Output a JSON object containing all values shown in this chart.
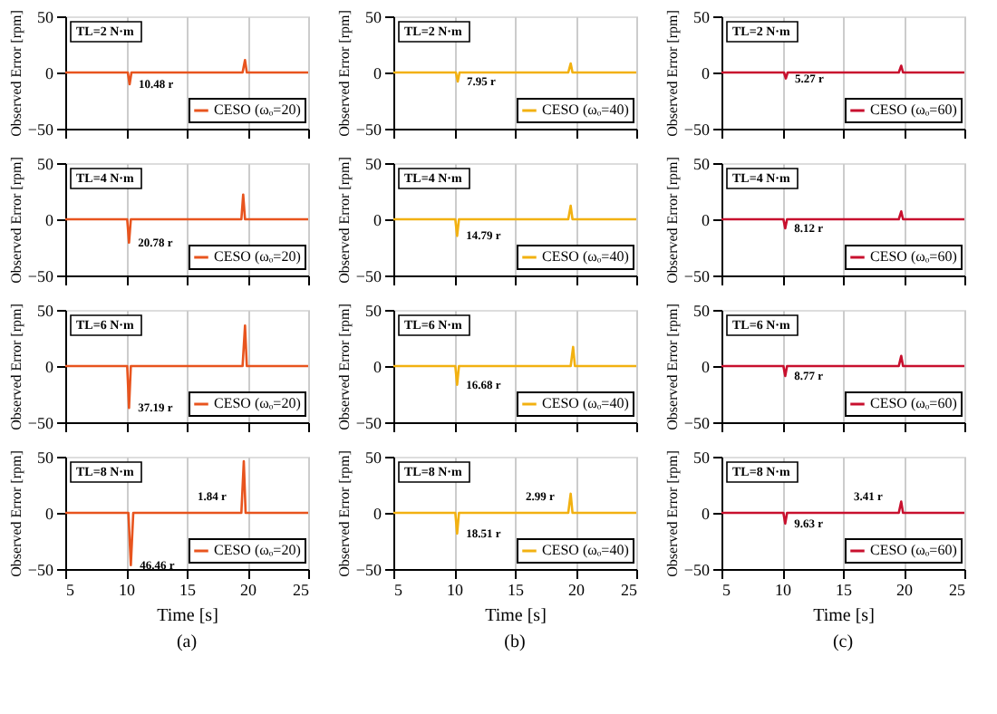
{
  "chart_data": [
    {
      "type": "line",
      "x": [
        5,
        7.5,
        10,
        10.15,
        10.3,
        10.45,
        12.5,
        15,
        17.5,
        19.6,
        19.8,
        19.95,
        22.5,
        25
      ],
      "series": [
        {
          "name": "CESO (ωₒ=20)",
          "color": "#e8541e",
          "values": [
            0,
            0,
            0,
            0,
            -10.5,
            0,
            0,
            0,
            0,
            0,
            11,
            0,
            0,
            0
          ]
        }
      ],
      "xlim": [
        5,
        25
      ],
      "ylim": [
        -50,
        50
      ],
      "xticks": [
        5,
        10,
        15,
        20,
        25
      ],
      "yticks": [
        -50,
        0,
        50
      ],
      "ylabel": "Observed Error [rpm]",
      "grid": "x",
      "legend": "bottom right",
      "tick_labels": "y",
      "annotations": [
        "TL=2 N·m",
        {
          "text": "10.48 r",
          "x": 10.3,
          "y": -10.5
        }
      ]
    },
    {
      "type": "line",
      "x": [
        5,
        7.5,
        10,
        10.15,
        10.3,
        10.45,
        12.5,
        15,
        17.5,
        19.4,
        19.6,
        19.75,
        22.5,
        25
      ],
      "series": [
        {
          "name": "CESO (ωₒ=40)",
          "color": "#f2b111",
          "values": [
            0,
            0,
            0,
            0,
            -8,
            0,
            0,
            0,
            0,
            0,
            8,
            0,
            0,
            0
          ]
        }
      ],
      "xlim": [
        5,
        25
      ],
      "ylim": [
        -50,
        50
      ],
      "xticks": [
        5,
        10,
        15,
        20,
        25
      ],
      "yticks": [
        -50,
        0,
        50
      ],
      "ylabel": "Observed Error [rpm]",
      "grid": "x",
      "legend": "bottom right",
      "tick_labels": "y",
      "annotations": [
        "TL=2 N·m",
        {
          "text": "7.95 r",
          "x": 10.3,
          "y": -8
        }
      ]
    },
    {
      "type": "line",
      "x": [
        5,
        7.5,
        10,
        10.15,
        10.3,
        10.45,
        12.5,
        15,
        17.5,
        19.6,
        19.8,
        19.95,
        22.5,
        25
      ],
      "series": [
        {
          "name": "CESO (ωₒ=60)",
          "color": "#c8102e",
          "values": [
            0,
            0,
            0,
            0,
            -5.3,
            0,
            0,
            0,
            0,
            0,
            6,
            0,
            0,
            0
          ]
        }
      ],
      "xlim": [
        5,
        25
      ],
      "ylim": [
        -50,
        50
      ],
      "xticks": [
        5,
        10,
        15,
        20,
        25
      ],
      "yticks": [
        -50,
        0,
        50
      ],
      "ylabel": "Observed Error [rpm]",
      "grid": "x",
      "legend": "bottom right",
      "tick_labels": "y",
      "annotations": [
        "TL=2 N·m",
        {
          "text": "5.27 r",
          "x": 10.3,
          "y": -5.3
        }
      ]
    },
    {
      "type": "line",
      "x": [
        5,
        7.5,
        10,
        10.1,
        10.25,
        10.4,
        12.5,
        15,
        17.5,
        19.5,
        19.65,
        19.8,
        22.5,
        25
      ],
      "series": [
        {
          "name": "CESO (ωₒ=20)",
          "color": "#e8541e",
          "values": [
            0,
            0,
            0,
            0,
            -20.8,
            0,
            0,
            0,
            0,
            0,
            22,
            0,
            0,
            0
          ]
        }
      ],
      "xlim": [
        5,
        25
      ],
      "ylim": [
        -50,
        50
      ],
      "xticks": [
        5,
        10,
        15,
        20,
        25
      ],
      "yticks": [
        -50,
        0,
        50
      ],
      "ylabel": "Observed Error [rpm]",
      "grid": "x",
      "legend": "bottom right",
      "tick_labels": "y",
      "annotations": [
        "TL=4 N·m",
        {
          "text": "20.78 r",
          "x": 10.25,
          "y": -20.8
        }
      ]
    },
    {
      "type": "line",
      "x": [
        5,
        7.5,
        10,
        10.1,
        10.25,
        10.4,
        12.5,
        15,
        17.5,
        19.4,
        19.6,
        19.75,
        22.5,
        25
      ],
      "series": [
        {
          "name": "CESO (ωₒ=40)",
          "color": "#f2b111",
          "values": [
            0,
            0,
            0,
            0,
            -14.8,
            0,
            0,
            0,
            0,
            0,
            12,
            0,
            0,
            0
          ]
        }
      ],
      "xlim": [
        5,
        25
      ],
      "ylim": [
        -50,
        50
      ],
      "xticks": [
        5,
        10,
        15,
        20,
        25
      ],
      "yticks": [
        -50,
        0,
        50
      ],
      "ylabel": "Observed Error [rpm]",
      "grid": "x",
      "legend": "bottom right",
      "tick_labels": "y",
      "annotations": [
        "TL=4 N·m",
        {
          "text": "14.79 r",
          "x": 10.25,
          "y": -14.8
        }
      ]
    },
    {
      "type": "line",
      "x": [
        5,
        7.5,
        10,
        10.1,
        10.25,
        10.4,
        12.5,
        15,
        17.5,
        19.6,
        19.8,
        19.95,
        22.5,
        25
      ],
      "series": [
        {
          "name": "CESO (ωₒ=60)",
          "color": "#c8102e",
          "values": [
            0,
            0,
            0,
            0,
            -8.1,
            0,
            0,
            0,
            0,
            0,
            7,
            0,
            0,
            0
          ]
        }
      ],
      "xlim": [
        5,
        25
      ],
      "ylim": [
        -50,
        50
      ],
      "xticks": [
        5,
        10,
        15,
        20,
        25
      ],
      "yticks": [
        -50,
        0,
        50
      ],
      "ylabel": "Observed Error [rpm]",
      "grid": "x",
      "legend": "bottom right",
      "tick_labels": "y",
      "annotations": [
        "TL=4 N·m",
        {
          "text": "8.12 r",
          "x": 10.25,
          "y": -8.1
        }
      ]
    },
    {
      "type": "line",
      "x": [
        5,
        7.5,
        10,
        10.1,
        10.25,
        10.4,
        12.5,
        15,
        17.5,
        19.6,
        19.8,
        19.95,
        22.5,
        25
      ],
      "series": [
        {
          "name": "CESO (ωₒ=20)",
          "color": "#e8541e",
          "values": [
            0,
            0,
            0,
            0,
            -37.2,
            0,
            0,
            0,
            0,
            0,
            36,
            0,
            0,
            0
          ]
        }
      ],
      "xlim": [
        5,
        25
      ],
      "ylim": [
        -50,
        50
      ],
      "xticks": [
        5,
        10,
        15,
        20,
        25
      ],
      "yticks": [
        -50,
        0,
        50
      ],
      "ylabel": "Observed Error [rpm]",
      "grid": "x",
      "legend": "bottom right",
      "tick_labels": "y",
      "annotations": [
        "TL=6 N·m",
        {
          "text": "37.19 r",
          "x": 10.25,
          "y": -37.2
        }
      ]
    },
    {
      "type": "line",
      "x": [
        5,
        7.5,
        10,
        10.1,
        10.25,
        10.4,
        12.5,
        15,
        17.5,
        19.6,
        19.8,
        19.95,
        22.5,
        25
      ],
      "series": [
        {
          "name": "CESO (ωₒ=40)",
          "color": "#f2b111",
          "values": [
            0,
            0,
            0,
            0,
            -16.7,
            0,
            0,
            0,
            0,
            0,
            17,
            0,
            0,
            0
          ]
        }
      ],
      "xlim": [
        5,
        25
      ],
      "ylim": [
        -50,
        50
      ],
      "xticks": [
        5,
        10,
        15,
        20,
        25
      ],
      "yticks": [
        -50,
        0,
        50
      ],
      "ylabel": "Observed Error [rpm]",
      "grid": "x",
      "legend": "bottom right",
      "tick_labels": "y",
      "annotations": [
        "TL=6 N·m",
        {
          "text": "16.68 r",
          "x": 10.25,
          "y": -16.7
        }
      ]
    },
    {
      "type": "line",
      "x": [
        5,
        7.5,
        10,
        10.1,
        10.25,
        10.4,
        12.5,
        15,
        17.5,
        19.6,
        19.8,
        19.95,
        22.5,
        25
      ],
      "series": [
        {
          "name": "CESO (ωₒ=60)",
          "color": "#c8102e",
          "values": [
            0,
            0,
            0,
            0,
            -8.8,
            0,
            0,
            0,
            0,
            0,
            9,
            0,
            0,
            0
          ]
        }
      ],
      "xlim": [
        5,
        25
      ],
      "ylim": [
        -50,
        50
      ],
      "xticks": [
        5,
        10,
        15,
        20,
        25
      ],
      "yticks": [
        -50,
        0,
        50
      ],
      "ylabel": "Observed Error [rpm]",
      "grid": "x",
      "legend": "bottom right",
      "tick_labels": "y",
      "annotations": [
        "TL=6 N·m",
        {
          "text": "8.77 r",
          "x": 10.25,
          "y": -8.8
        }
      ]
    },
    {
      "type": "line",
      "x": [
        5,
        7.5,
        10,
        10.2,
        10.4,
        10.6,
        12.5,
        15,
        17.5,
        19.5,
        19.7,
        19.85,
        22.5,
        25
      ],
      "series": [
        {
          "name": "CESO (ωₒ=20)",
          "color": "#e8541e",
          "values": [
            0,
            0,
            0,
            0,
            -46.5,
            0,
            0,
            0,
            0,
            0,
            46,
            0,
            0,
            0
          ]
        }
      ],
      "xlim": [
        5,
        25
      ],
      "ylim": [
        -50,
        50
      ],
      "xticks": [
        5,
        10,
        15,
        20,
        25
      ],
      "yticks": [
        -50,
        0,
        50
      ],
      "xlabel": "Time [s]",
      "ylabel": "Observed Error [rpm]",
      "grid": "x",
      "legend": "bottom right",
      "annotations": [
        "TL=8 N·m",
        {
          "text": "46.46 r",
          "x": 10.4,
          "y": -46.5
        },
        {
          "text": "1.84 r",
          "x": 15,
          "y": 0
        },
        "(a)"
      ]
    },
    {
      "type": "line",
      "x": [
        5,
        7.5,
        10,
        10.1,
        10.25,
        10.4,
        12.5,
        15,
        17.5,
        19.4,
        19.6,
        19.75,
        22.5,
        25
      ],
      "series": [
        {
          "name": "CESO (ωₒ=40)",
          "color": "#f2b111",
          "values": [
            0,
            0,
            0,
            0,
            -18.5,
            0,
            0,
            0,
            0,
            0,
            17,
            0,
            0,
            0
          ]
        }
      ],
      "xlim": [
        5,
        25
      ],
      "ylim": [
        -50,
        50
      ],
      "xticks": [
        5,
        10,
        15,
        20,
        25
      ],
      "yticks": [
        -50,
        0,
        50
      ],
      "xlabel": "Time [s]",
      "ylabel": "Observed Error [rpm]",
      "grid": "x",
      "legend": "bottom right",
      "annotations": [
        "TL=8 N·m",
        {
          "text": "18.51 r",
          "x": 10.25,
          "y": -18.5
        },
        {
          "text": "2.99 r",
          "x": 15,
          "y": 0
        },
        "(b)"
      ]
    },
    {
      "type": "line",
      "x": [
        5,
        7.5,
        10,
        10.1,
        10.25,
        10.4,
        12.5,
        15,
        17.5,
        19.6,
        19.8,
        19.95,
        22.5,
        25
      ],
      "series": [
        {
          "name": "CESO (ωₒ=60)",
          "color": "#c8102e",
          "values": [
            0,
            0,
            0,
            0,
            -9.6,
            0,
            0,
            0,
            0,
            0,
            10,
            0,
            0,
            0
          ]
        }
      ],
      "xlim": [
        5,
        25
      ],
      "ylim": [
        -50,
        50
      ],
      "xticks": [
        5,
        10,
        15,
        20,
        25
      ],
      "yticks": [
        -50,
        0,
        50
      ],
      "xlabel": "Time [s]",
      "ylabel": "Observed Error [rpm]",
      "grid": "x",
      "legend": "bottom right",
      "annotations": [
        "TL=8 N·m",
        {
          "text": "9.63 r",
          "x": 10.25,
          "y": -9.6
        },
        {
          "text": "3.41 r",
          "x": 15,
          "y": 0
        },
        "(c)"
      ]
    }
  ]
}
